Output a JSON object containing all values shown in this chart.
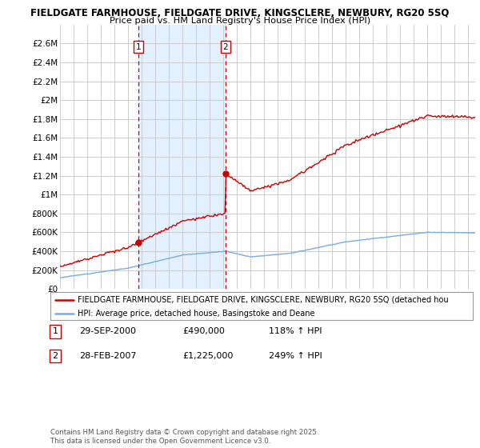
{
  "title_line1": "FIELDGATE FARMHOUSE, FIELDGATE DRIVE, KINGSCLERE, NEWBURY, RG20 5SQ",
  "title_line2": "Price paid vs. HM Land Registry's House Price Index (HPI)",
  "ylim": [
    0,
    2800000
  ],
  "yticks": [
    0,
    200000,
    400000,
    600000,
    800000,
    1000000,
    1200000,
    1400000,
    1600000,
    1800000,
    2000000,
    2200000,
    2400000,
    2600000
  ],
  "ytick_labels": [
    "£0",
    "£200K",
    "£400K",
    "£600K",
    "£800K",
    "£1M",
    "£1.2M",
    "£1.4M",
    "£1.6M",
    "£1.8M",
    "£2M",
    "£2.2M",
    "£2.4M",
    "£2.6M"
  ],
  "legend_line1": "FIELDGATE FARMHOUSE, FIELDGATE DRIVE, KINGSCLERE, NEWBURY, RG20 5SQ (detached hou",
  "legend_line2": "HPI: Average price, detached house, Basingstoke and Deane",
  "marker1_year": 2000.75,
  "marker1_price": 490000,
  "marker1_date": "29-SEP-2000",
  "marker1_label": "118% ↑ HPI",
  "marker2_year": 2007.167,
  "marker2_price": 1225000,
  "marker2_date": "28-FEB-2007",
  "marker2_label": "249% ↑ HPI",
  "copyright_text": "Contains HM Land Registry data © Crown copyright and database right 2025.\nThis data is licensed under the Open Government Licence v3.0.",
  "line_color_red": "#cc0000",
  "line_color_blue": "#7aacdc",
  "background_color": "#ffffff",
  "grid_color": "#cccccc",
  "shade_color": "#ddeeff",
  "xmin": 1995,
  "xmax": 2025.5
}
